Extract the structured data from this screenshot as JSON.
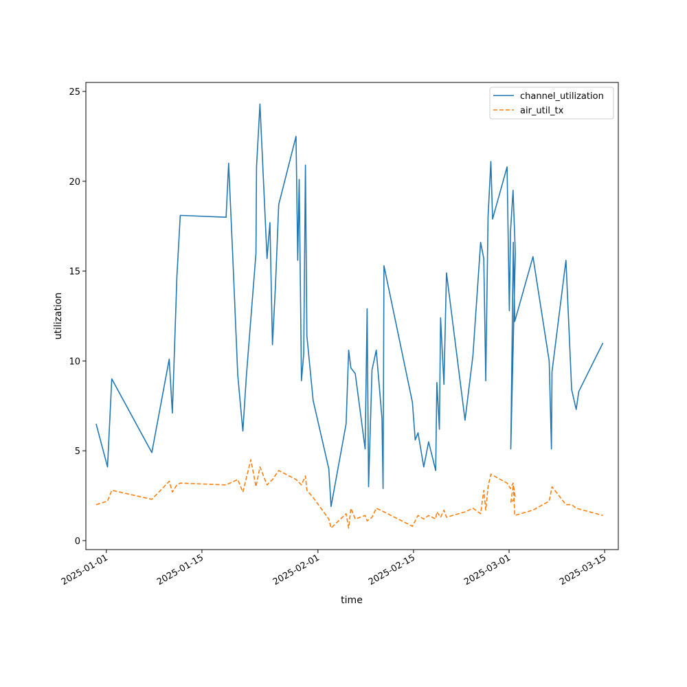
{
  "chart_data": {
    "type": "line",
    "xlabel": "time",
    "ylabel": "utilization",
    "x_axis": "date",
    "xlim": [
      "2024-12-29",
      "2025-03-17"
    ],
    "ylim": [
      -0.5,
      25.5
    ],
    "xticks": [
      "2025-01-01",
      "2025-01-15",
      "2025-02-01",
      "2025-02-15",
      "2025-03-01",
      "2025-03-15"
    ],
    "yticks": [
      0,
      5,
      10,
      15,
      20,
      25
    ],
    "grid": false,
    "legend_position": "top-right",
    "series": [
      {
        "name": "channel_utilization",
        "color": "#1f77b4",
        "dash": "solid",
        "points": [
          [
            "2024-12-30T12:00",
            6.5
          ],
          [
            "2025-01-01T04:00",
            4.1
          ],
          [
            "2025-01-01T19:00",
            9.0
          ],
          [
            "2025-01-07T16:00",
            4.9
          ],
          [
            "2025-01-10T05:00",
            10.1
          ],
          [
            "2025-01-10T16:00",
            7.1
          ],
          [
            "2025-01-11T08:00",
            14.7
          ],
          [
            "2025-01-11T20:00",
            18.1
          ],
          [
            "2025-01-18T13:00",
            18.0
          ],
          [
            "2025-01-18T22:00",
            21.0
          ],
          [
            "2025-01-19T12:00",
            16.0
          ],
          [
            "2025-01-20T06:00",
            9.2
          ],
          [
            "2025-01-21T00:00",
            6.1
          ],
          [
            "2025-01-21T12:00",
            9.1
          ],
          [
            "2025-01-22T22:00",
            16.0
          ],
          [
            "2025-01-23T00:00",
            20.8
          ],
          [
            "2025-01-23T12:00",
            24.3
          ],
          [
            "2025-01-24T13:00",
            15.7
          ],
          [
            "2025-01-24T23:00",
            17.7
          ],
          [
            "2025-01-25T08:00",
            10.9
          ],
          [
            "2025-01-25T19:00",
            14.3
          ],
          [
            "2025-01-26T06:00",
            18.7
          ],
          [
            "2025-01-28T19:00",
            22.5
          ],
          [
            "2025-01-29T01:00",
            15.6
          ],
          [
            "2025-01-29T06:00",
            20.1
          ],
          [
            "2025-01-29T14:00",
            8.9
          ],
          [
            "2025-01-29T22:00",
            10.4
          ],
          [
            "2025-01-30T04:00",
            20.9
          ],
          [
            "2025-01-30T09:00",
            11.4
          ],
          [
            "2025-01-31T07:00",
            7.8
          ],
          [
            "2025-02-02T14:00",
            4.0
          ],
          [
            "2025-02-02T22:00",
            1.9
          ],
          [
            "2025-02-05T03:00",
            6.5
          ],
          [
            "2025-02-05T12:00",
            10.6
          ],
          [
            "2025-02-05T20:00",
            9.6
          ],
          [
            "2025-02-06T11:00",
            9.3
          ],
          [
            "2025-02-07T22:00",
            5.1
          ],
          [
            "2025-02-08T05:00",
            12.9
          ],
          [
            "2025-02-08T10:00",
            3.0
          ],
          [
            "2025-02-08T22:00",
            9.5
          ],
          [
            "2025-02-09T13:00",
            10.6
          ],
          [
            "2025-02-10T09:00",
            6.8
          ],
          [
            "2025-02-10T13:00",
            2.9
          ],
          [
            "2025-02-10T16:00",
            15.3
          ],
          [
            "2025-02-14T20:00",
            7.7
          ],
          [
            "2025-02-15T06:00",
            5.6
          ],
          [
            "2025-02-15T16:00",
            6.0
          ],
          [
            "2025-02-16T12:00",
            4.1
          ],
          [
            "2025-02-17T05:00",
            5.5
          ],
          [
            "2025-02-18T06:00",
            3.9
          ],
          [
            "2025-02-18T10:00",
            8.8
          ],
          [
            "2025-02-18T19:00",
            6.2
          ],
          [
            "2025-02-18T23:00",
            12.4
          ],
          [
            "2025-02-19T11:00",
            8.7
          ],
          [
            "2025-02-19T20:00",
            14.9
          ],
          [
            "2025-02-22T13:00",
            6.7
          ],
          [
            "2025-02-23T17:00",
            10.3
          ],
          [
            "2025-02-24T20:00",
            16.6
          ],
          [
            "2025-02-25T07:00",
            15.7
          ],
          [
            "2025-02-25T14:00",
            8.9
          ],
          [
            "2025-02-25T22:00",
            18.0
          ],
          [
            "2025-02-26T08:00",
            21.1
          ],
          [
            "2025-02-26T14:00",
            17.9
          ],
          [
            "2025-02-28T17:00",
            20.8
          ],
          [
            "2025-02-29T01:00",
            12.8
          ],
          [
            "2025-02-29T05:00",
            17.2
          ],
          [
            "2025-02-29T14:00",
            19.5
          ],
          [
            "2025-02-29T22:00",
            16.0
          ],
          [
            "2025-03-01T06:00",
            5.1
          ],
          [
            "2025-03-01T15:00",
            16.6
          ],
          [
            "2025-03-01T20:00",
            12.2
          ],
          [
            "2025-03-04T12:00",
            15.8
          ],
          [
            "2025-03-06T21:00",
            10.0
          ],
          [
            "2025-03-07T05:00",
            5.1
          ],
          [
            "2025-03-07T07:00",
            9.4
          ],
          [
            "2025-03-09T08:00",
            15.6
          ],
          [
            "2025-03-10T04:00",
            8.4
          ],
          [
            "2025-03-10T20:00",
            7.3
          ],
          [
            "2025-03-11T05:00",
            8.3
          ],
          [
            "2025-03-14T18:00",
            11.0
          ]
        ]
      },
      {
        "name": "air_util_tx",
        "color": "#ff7f0e",
        "dash": "dashed",
        "points": [
          [
            "2024-12-30T12:00",
            2.0
          ],
          [
            "2025-01-01T04:00",
            2.2
          ],
          [
            "2025-01-01T19:00",
            2.8
          ],
          [
            "2025-01-07T16:00",
            2.3
          ],
          [
            "2025-01-10T05:00",
            3.3
          ],
          [
            "2025-01-10T16:00",
            2.7
          ],
          [
            "2025-01-11T08:00",
            3.1
          ],
          [
            "2025-01-11T20:00",
            3.2
          ],
          [
            "2025-01-18T13:00",
            3.1
          ],
          [
            "2025-01-20T06:00",
            3.4
          ],
          [
            "2025-01-21T00:00",
            2.7
          ],
          [
            "2025-01-22T04:00",
            4.5
          ],
          [
            "2025-01-22T22:00",
            3.0
          ],
          [
            "2025-01-23T12:00",
            4.1
          ],
          [
            "2025-01-24T13:00",
            3.1
          ],
          [
            "2025-01-25T08:00",
            3.4
          ],
          [
            "2025-01-26T06:00",
            3.9
          ],
          [
            "2025-01-28T19:00",
            3.4
          ],
          [
            "2025-01-29T14:00",
            3.1
          ],
          [
            "2025-01-30T04:00",
            3.6
          ],
          [
            "2025-01-30T09:00",
            2.8
          ],
          [
            "2025-01-31T07:00",
            2.4
          ],
          [
            "2025-02-02T14:00",
            1.2
          ],
          [
            "2025-02-02T22:00",
            0.7
          ],
          [
            "2025-02-05T03:00",
            1.5
          ],
          [
            "2025-02-05T12:00",
            0.7
          ],
          [
            "2025-02-05T20:00",
            1.8
          ],
          [
            "2025-02-06T11:00",
            1.2
          ],
          [
            "2025-02-07T22:00",
            1.4
          ],
          [
            "2025-02-08T05:00",
            1.1
          ],
          [
            "2025-02-08T22:00",
            1.3
          ],
          [
            "2025-02-09T13:00",
            1.8
          ],
          [
            "2025-02-10T16:00",
            1.6
          ],
          [
            "2025-02-14T20:00",
            0.8
          ],
          [
            "2025-02-15T16:00",
            1.4
          ],
          [
            "2025-02-16T12:00",
            1.2
          ],
          [
            "2025-02-17T05:00",
            1.4
          ],
          [
            "2025-02-18T06:00",
            1.2
          ],
          [
            "2025-02-18T10:00",
            1.6
          ],
          [
            "2025-02-18T23:00",
            1.3
          ],
          [
            "2025-02-19T11:00",
            1.7
          ],
          [
            "2025-02-19T20:00",
            1.3
          ],
          [
            "2025-02-22T13:00",
            1.6
          ],
          [
            "2025-02-23T17:00",
            1.8
          ],
          [
            "2025-02-24T20:00",
            1.5
          ],
          [
            "2025-02-25T07:00",
            2.8
          ],
          [
            "2025-02-25T14:00",
            1.7
          ],
          [
            "2025-02-25T22:00",
            3.0
          ],
          [
            "2025-02-26T08:00",
            3.7
          ],
          [
            "2025-02-28T17:00",
            3.2
          ],
          [
            "2025-02-29T05:00",
            2.9
          ],
          [
            "2025-02-29T14:00",
            3.2
          ],
          [
            "2025-02-29T22:00",
            2.4
          ],
          [
            "2025-03-01T06:00",
            2.1
          ],
          [
            "2025-03-01T15:00",
            3.1
          ],
          [
            "2025-03-01T20:00",
            1.4
          ],
          [
            "2025-03-04T12:00",
            1.7
          ],
          [
            "2025-03-06T21:00",
            2.2
          ],
          [
            "2025-03-07T07:00",
            3.0
          ],
          [
            "2025-03-09T08:00",
            2.0
          ],
          [
            "2025-03-10T04:00",
            2.0
          ],
          [
            "2025-03-10T20:00",
            1.8
          ],
          [
            "2025-03-14T18:00",
            1.4
          ]
        ]
      }
    ]
  }
}
